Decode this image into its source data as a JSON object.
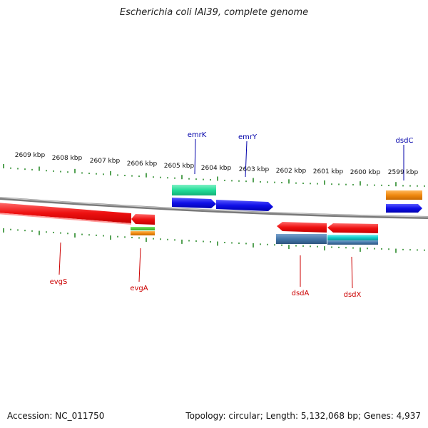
{
  "title": "Escherichia coli IAI39, complete genome",
  "footer": {
    "accession": "Accession: NC_011750",
    "summary": "Topology: circular; Length: 5,132,068 bp; Genes: 4,937"
  },
  "colors": {
    "backbone": "#888888",
    "tick": "#2a8a2a",
    "red": "#ee1111",
    "blue": "#1010e8",
    "green": "#22dd99",
    "orange": "#f08a10",
    "steel": "#4477aa",
    "cyan": "#11cccc",
    "label_red": "#cc0000",
    "label_blue": "#0000aa"
  },
  "ruler": {
    "unit": "kbp",
    "labels": [
      "2609 kbp",
      "2608 kbp",
      "2607 kbp",
      "2606 kbp",
      "2605 kbp",
      "2604 kbp",
      "2603 kbp",
      "2602 kbp",
      "2601 kbp",
      "2600 kbp",
      "2599 kbp"
    ]
  },
  "genes_top": [
    {
      "name": "emrK",
      "label_color": "#0000aa"
    },
    {
      "name": "emrY",
      "label_color": "#0000aa"
    },
    {
      "name": "dsdC",
      "label_color": "#0000aa"
    }
  ],
  "genes_bottom": [
    {
      "name": "evgS",
      "label_color": "#cc0000"
    },
    {
      "name": "evgA",
      "label_color": "#cc0000"
    },
    {
      "name": "dsdA",
      "label_color": "#cc0000"
    },
    {
      "name": "dsdX",
      "label_color": "#cc0000"
    }
  ]
}
